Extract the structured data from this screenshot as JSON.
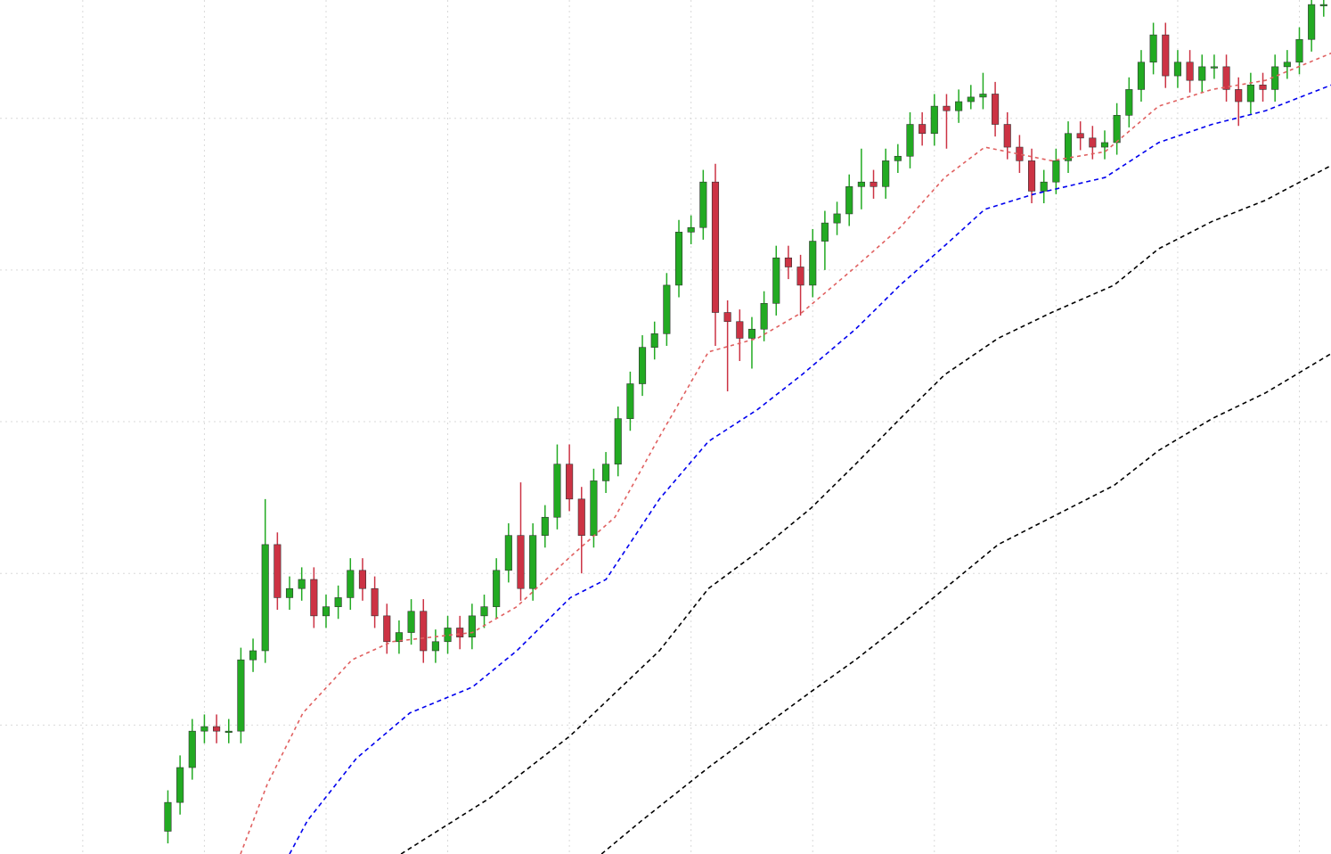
{
  "chart_data": {
    "type": "candlestick",
    "grid": true,
    "up_color": "#22aa22",
    "down_color": "#cc3344",
    "grid_color": "#d9d9d9",
    "xlim": [
      -13.8,
      95.6
    ],
    "ylim": [
      0.15,
      5.78
    ],
    "xticks": [
      -7,
      3,
      13,
      23,
      33,
      43,
      53,
      63,
      73,
      83,
      93
    ],
    "yticks": [
      1,
      2,
      3,
      4,
      5
    ],
    "x": [
      0,
      1,
      2,
      3,
      4,
      5,
      6,
      7,
      8,
      9,
      10,
      11,
      12,
      13,
      14,
      15,
      16,
      17,
      18,
      19,
      20,
      21,
      22,
      23,
      24,
      25,
      26,
      27,
      28,
      29,
      30,
      31,
      32,
      33,
      34,
      35,
      36,
      37,
      38,
      39,
      40,
      41,
      42,
      43,
      44,
      45,
      46,
      47,
      48,
      49,
      50,
      51,
      52,
      53,
      54,
      55,
      56,
      57,
      58,
      59,
      60,
      61,
      62,
      63,
      64,
      65,
      66,
      67,
      68,
      69,
      70,
      71,
      72,
      73,
      74,
      75,
      76,
      77,
      78,
      79,
      80,
      81,
      82,
      83,
      84,
      85,
      86,
      87,
      88,
      89,
      90,
      91,
      92,
      93,
      94,
      95
    ],
    "open": [
      0.3,
      0.49,
      0.72,
      0.96,
      0.99,
      0.96,
      0.96,
      1.43,
      1.49,
      2.19,
      1.84,
      1.9,
      1.96,
      1.72,
      1.78,
      1.84,
      2.02,
      1.9,
      1.72,
      1.55,
      1.61,
      1.75,
      1.49,
      1.55,
      1.64,
      1.58,
      1.72,
      1.78,
      2.02,
      2.25,
      1.9,
      2.25,
      2.37,
      2.72,
      2.49,
      2.25,
      2.61,
      2.72,
      3.02,
      3.25,
      3.49,
      3.58,
      3.9,
      4.25,
      4.28,
      4.58,
      3.72,
      3.66,
      3.55,
      3.61,
      3.78,
      4.08,
      4.02,
      3.9,
      4.19,
      4.31,
      4.37,
      4.55,
      4.58,
      4.55,
      4.72,
      4.75,
      4.96,
      4.9,
      5.08,
      5.05,
      5.11,
      5.14,
      5.16,
      4.96,
      4.81,
      4.72,
      4.52,
      4.58,
      4.72,
      4.9,
      4.87,
      4.81,
      4.84,
      5.02,
      5.19,
      5.37,
      5.55,
      5.28,
      5.37,
      5.25,
      5.34,
      5.34,
      5.19,
      5.11,
      5.22,
      5.19,
      5.34,
      5.37,
      5.52,
      5.75
    ],
    "high": [
      0.57,
      0.8,
      1.04,
      1.07,
      1.07,
      1.04,
      1.51,
      1.57,
      2.49,
      2.27,
      1.98,
      2.04,
      2.04,
      1.86,
      1.92,
      2.1,
      2.1,
      1.98,
      1.8,
      1.69,
      1.83,
      1.83,
      1.63,
      1.72,
      1.72,
      1.8,
      1.86,
      2.1,
      2.33,
      2.6,
      2.33,
      2.45,
      2.85,
      2.85,
      2.57,
      2.69,
      2.8,
      3.1,
      3.33,
      3.57,
      3.66,
      3.98,
      4.33,
      4.36,
      4.66,
      4.7,
      3.8,
      3.74,
      3.69,
      3.86,
      4.16,
      4.16,
      4.1,
      4.27,
      4.39,
      4.45,
      4.63,
      4.8,
      4.66,
      4.8,
      4.83,
      5.04,
      5.04,
      5.16,
      5.16,
      5.19,
      5.22,
      5.3,
      5.24,
      5.04,
      4.89,
      4.8,
      4.66,
      4.8,
      4.98,
      4.98,
      4.95,
      4.92,
      5.1,
      5.27,
      5.45,
      5.63,
      5.63,
      5.45,
      5.45,
      5.42,
      5.42,
      5.42,
      5.27,
      5.3,
      5.3,
      5.42,
      5.45,
      5.6,
      5.83,
      5.83
    ],
    "low": [
      0.22,
      0.41,
      0.64,
      0.88,
      0.88,
      0.88,
      0.88,
      1.35,
      1.41,
      1.76,
      1.76,
      1.82,
      1.64,
      1.64,
      1.7,
      1.76,
      1.82,
      1.64,
      1.47,
      1.47,
      1.53,
      1.41,
      1.41,
      1.47,
      1.5,
      1.5,
      1.64,
      1.7,
      1.94,
      1.82,
      1.82,
      2.17,
      2.29,
      2.41,
      2.0,
      2.17,
      2.53,
      2.64,
      2.94,
      3.17,
      3.41,
      3.5,
      3.82,
      4.17,
      4.2,
      3.5,
      3.2,
      3.4,
      3.35,
      3.53,
      3.7,
      3.94,
      3.7,
      3.82,
      4.0,
      4.23,
      4.29,
      4.4,
      4.47,
      4.47,
      4.64,
      4.67,
      4.82,
      4.82,
      4.8,
      4.97,
      5.06,
      5.06,
      4.88,
      4.73,
      4.64,
      4.44,
      4.44,
      4.5,
      4.64,
      4.79,
      4.73,
      4.73,
      4.76,
      4.94,
      5.11,
      5.29,
      5.2,
      5.2,
      5.17,
      5.17,
      5.26,
      5.11,
      4.95,
      5.03,
      5.11,
      5.11,
      5.26,
      5.29,
      5.44,
      5.67
    ],
    "close": [
      0.49,
      0.72,
      0.96,
      0.99,
      0.96,
      0.96,
      1.43,
      1.49,
      2.19,
      1.84,
      1.9,
      1.96,
      1.72,
      1.78,
      1.84,
      2.02,
      1.9,
      1.72,
      1.55,
      1.61,
      1.75,
      1.49,
      1.55,
      1.64,
      1.58,
      1.72,
      1.78,
      2.02,
      2.25,
      1.9,
      2.25,
      2.37,
      2.72,
      2.49,
      2.25,
      2.61,
      2.72,
      3.02,
      3.25,
      3.49,
      3.58,
      3.9,
      4.25,
      4.28,
      4.58,
      3.72,
      3.66,
      3.55,
      3.61,
      3.78,
      4.08,
      4.02,
      3.9,
      4.19,
      4.31,
      4.37,
      4.55,
      4.58,
      4.55,
      4.72,
      4.75,
      4.96,
      4.9,
      5.08,
      5.05,
      5.11,
      5.14,
      5.16,
      4.96,
      4.81,
      4.72,
      4.52,
      4.58,
      4.72,
      4.9,
      4.87,
      4.81,
      4.84,
      5.02,
      5.19,
      5.37,
      5.55,
      5.28,
      5.37,
      5.25,
      5.34,
      5.34,
      5.19,
      5.11,
      5.22,
      5.19,
      5.34,
      5.37,
      5.52,
      5.75,
      5.75
    ],
    "lines": [
      {
        "color": "#e06060",
        "dash": "4 4",
        "x": [
          5.97,
          8.17,
          11.1,
          15.13,
          18.43,
          25.02,
          28.67,
          33.08,
          36.74,
          40.4,
          44.43,
          48.46,
          52.12,
          56.52,
          60.18,
          63.85,
          67.14,
          72.64,
          77.03,
          81.43,
          85.82,
          90.22,
          95.64
        ],
        "values": [
          0.15,
          0.61,
          1.08,
          1.43,
          1.55,
          1.61,
          1.78,
          2.11,
          2.37,
          2.9,
          3.46,
          3.55,
          3.72,
          4.02,
          4.28,
          4.61,
          4.81,
          4.72,
          4.78,
          5.08,
          5.19,
          5.25,
          5.43
        ]
      },
      {
        "color": "#0000ee",
        "dash": "5 4",
        "x": [
          10.0,
          11.47,
          15.49,
          19.89,
          25.02,
          28.68,
          33.08,
          36.01,
          40.4,
          44.43,
          48.46,
          52.12,
          56.52,
          60.18,
          63.85,
          67.14,
          71.17,
          77.03,
          81.43,
          85.82,
          90.22,
          95.64
        ],
        "values": [
          0.15,
          0.37,
          0.78,
          1.08,
          1.25,
          1.49,
          1.84,
          1.96,
          2.49,
          2.87,
          3.08,
          3.31,
          3.61,
          3.9,
          4.16,
          4.4,
          4.5,
          4.61,
          4.84,
          4.96,
          5.05,
          5.22
        ]
      },
      {
        "color": "#000000",
        "dash": "5 4",
        "x": [
          19.16,
          26.48,
          33.08,
          40.4,
          44.43,
          48.46,
          52.86,
          56.52,
          60.18,
          63.85,
          68.24,
          72.64,
          77.77,
          81.43,
          85.82,
          90.22,
          95.64
        ],
        "values": [
          0.15,
          0.52,
          0.93,
          1.49,
          1.9,
          2.14,
          2.43,
          2.72,
          3.02,
          3.31,
          3.55,
          3.72,
          3.9,
          4.14,
          4.32,
          4.46,
          4.69
        ]
      },
      {
        "color": "#000000",
        "dash": "5 4",
        "x": [
          35.64,
          38.94,
          44.43,
          48.46,
          52.86,
          56.52,
          60.18,
          63.85,
          68.24,
          72.64,
          77.77,
          81.43,
          85.82,
          90.22,
          95.64
        ],
        "values": [
          0.15,
          0.37,
          0.72,
          0.96,
          1.22,
          1.43,
          1.66,
          1.9,
          2.19,
          2.37,
          2.58,
          2.81,
          3.02,
          3.19,
          3.45
        ]
      }
    ]
  }
}
